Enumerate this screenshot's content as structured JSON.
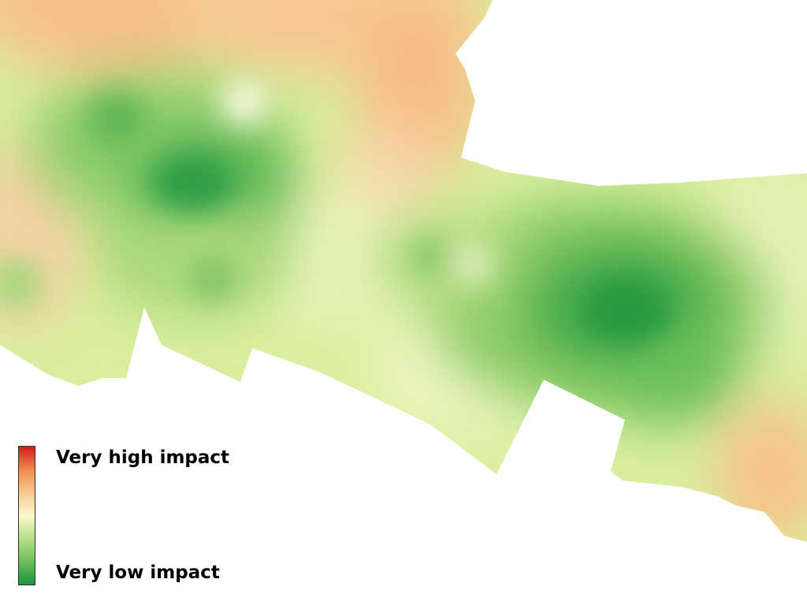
{
  "map": {
    "background_color": "#ffffff",
    "surface_palette": {
      "very_low": "#1e9a44",
      "low": "#8ccd62",
      "moderate": "#f4f8c6",
      "high": "#f6b47d",
      "very_high": "#d7191c"
    }
  },
  "legend": {
    "high_label": "Very high impact",
    "low_label": "Very low impact",
    "ramp_colors": [
      "#d7191c",
      "#f08a4b",
      "#f9c891",
      "#fbf7cf",
      "#b6df86",
      "#6ebd5a",
      "#1a9641"
    ]
  }
}
